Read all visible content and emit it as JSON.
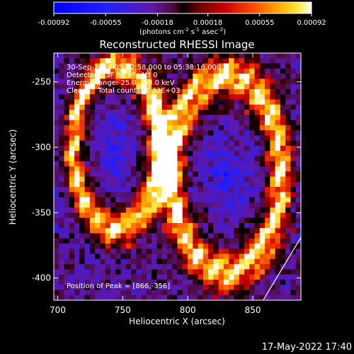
{
  "chart_data": {
    "type": "heatmap",
    "title": "Reconstructed RHESSI Image",
    "xlabel": "Heliocentric X (arcsec)",
    "ylabel": "Heliocentric Y (arcsec)",
    "xlim": [
      697,
      887
    ],
    "ylim": [
      -417,
      -228
    ],
    "x_ticks": [
      700,
      750,
      800,
      850
    ],
    "y_ticks": [
      -250,
      -300,
      -350,
      -400
    ],
    "colorbar": {
      "range": [
        -0.00092,
        0.00092
      ],
      "tick_values": [
        -0.00092,
        -0.00055,
        -0.00018,
        0.00018,
        0.00055,
        0.00092
      ],
      "tick_labels": [
        "-0.00092",
        "-0.00055",
        "-0.00018",
        "0.00018",
        "0.00055",
        "0.00092"
      ],
      "units_prefix": "(photons cm",
      "units_exp1": "-2",
      "units_mid": " s",
      "units_exp2": "-1",
      "units_mid2": " asec",
      "units_exp3": "-2",
      "units_suffix": ")"
    },
    "annotations": {
      "time_range": "30-Sep-2014 05:32:58.000 to 05:38:16.000",
      "detectors": "Detectors: 3F 6F 9F, Att 0",
      "energy": "Energy Range: 25.0 - 50.0 keV",
      "clean": "Clean     Total counts: 4.33E+03",
      "peak": "Position of Peak = [866,-356]"
    },
    "limb_arc": [
      [
        858,
        -417
      ],
      [
        887,
        -369
      ]
    ],
    "features": [
      {
        "label": "left ring",
        "cx": 745,
        "cy": -300,
        "rx": 33,
        "ry": 62
      },
      {
        "label": "right ring",
        "cx": 830,
        "cy": -320,
        "rx": 42,
        "ry": 75
      }
    ],
    "grid": false,
    "legend": "none"
  },
  "footer": {
    "timestamp": "17-May-2022 17:40"
  }
}
